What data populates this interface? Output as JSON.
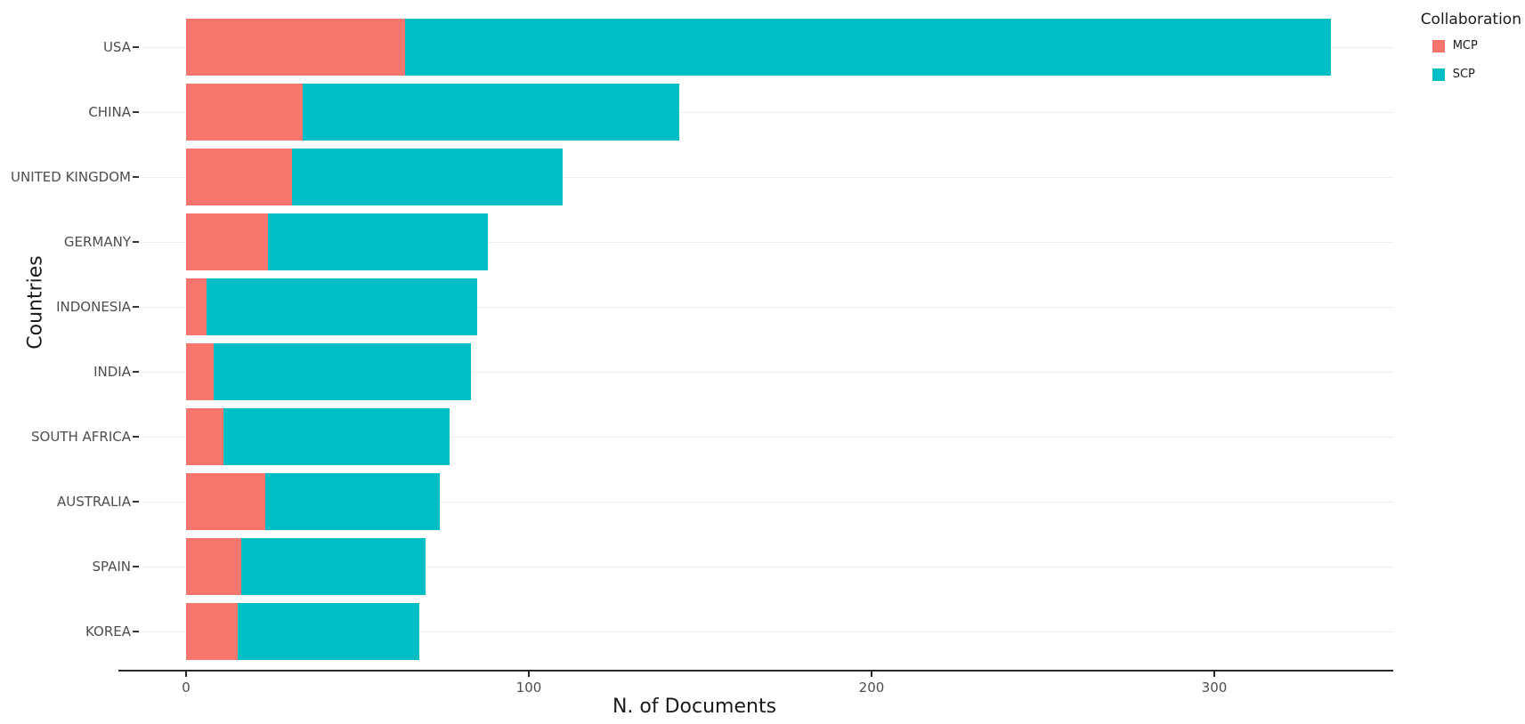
{
  "chart_data": {
    "type": "bar",
    "orientation": "horizontal",
    "stacked": true,
    "title": "",
    "xlabel": "N. of Documents",
    "ylabel": "Countries",
    "categories": [
      "USA",
      "CHINA",
      "UNITED KINGDOM",
      "GERMANY",
      "INDONESIA",
      "INDIA",
      "SOUTH AFRICA",
      "AUSTRALIA",
      "SPAIN",
      "KOREA"
    ],
    "series": [
      {
        "name": "MCP",
        "color": "#F8766D",
        "values": [
          64,
          34,
          31,
          24,
          6,
          8,
          11,
          23,
          16,
          15
        ]
      },
      {
        "name": "SCP",
        "color": "#00BFC4",
        "values": [
          270,
          110,
          79,
          64,
          79,
          75,
          66,
          51,
          54,
          53
        ]
      }
    ],
    "x_ticks": [
      0,
      100,
      200,
      300
    ],
    "xlim": [
      0,
      350
    ],
    "grid": "horizontal-only",
    "gridline_color": "#eeeeee",
    "legend_position": "top-right"
  },
  "legend": {
    "title": "Collaboration",
    "items": [
      {
        "label": "MCP",
        "color": "#F8766D"
      },
      {
        "label": "SCP",
        "color": "#00BFC4"
      }
    ]
  }
}
